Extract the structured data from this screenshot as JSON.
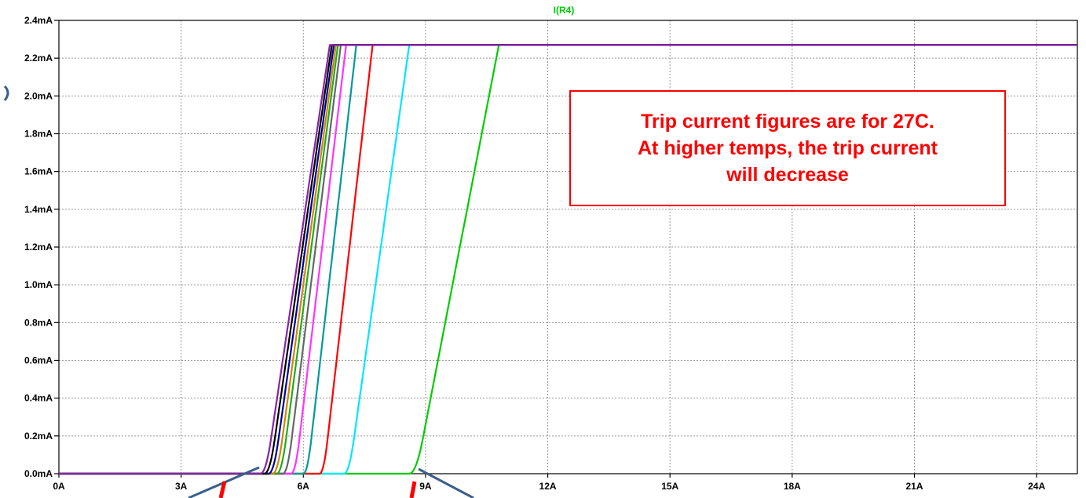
{
  "chart_data": {
    "type": "line",
    "title": "I(R4)",
    "xlabel": "",
    "ylabel": "",
    "xlim": [
      0,
      25
    ],
    "ylim": [
      0,
      2.4
    ],
    "x_ticks": [
      "0A",
      "3A",
      "6A",
      "9A",
      "12A",
      "15A",
      "18A",
      "21A",
      "24A"
    ],
    "x_tick_values": [
      0,
      3,
      6,
      9,
      12,
      15,
      18,
      21,
      24
    ],
    "y_ticks": [
      "0.0mA",
      "0.2mA",
      "0.4mA",
      "0.6mA",
      "0.8mA",
      "1.0mA",
      "1.2mA",
      "1.4mA",
      "1.6mA",
      "1.8mA",
      "2.0mA",
      "2.2mA",
      "2.4mA"
    ],
    "y_tick_values": [
      0,
      0.2,
      0.4,
      0.6,
      0.8,
      1.0,
      1.2,
      1.4,
      1.6,
      1.8,
      2.0,
      2.2,
      2.4
    ],
    "grid": true,
    "saturation_mA": 2.27,
    "series": [
      {
        "color": "#00cc00",
        "x_on": 8.6,
        "x_full": 10.8
      },
      {
        "color": "#00e5ff",
        "x_on": 7.0,
        "x_full": 8.6
      },
      {
        "color": "#ff0000",
        "x_on": 6.4,
        "x_full": 7.7
      },
      {
        "color": "#009999",
        "x_on": 6.0,
        "x_full": 7.3
      },
      {
        "color": "#ff33ff",
        "x_on": 5.7,
        "x_full": 7.05
      },
      {
        "color": "#666666",
        "x_on": 5.5,
        "x_full": 6.92
      },
      {
        "color": "#22aa22",
        "x_on": 5.35,
        "x_full": 6.85
      },
      {
        "color": "#cc8800",
        "x_on": 5.25,
        "x_full": 6.8
      },
      {
        "color": "#000099",
        "x_on": 5.15,
        "x_full": 6.75
      },
      {
        "color": "#000000",
        "x_on": 5.05,
        "x_full": 6.7
      },
      {
        "color": "#8822aa",
        "x_on": 4.95,
        "x_full": 6.65
      }
    ],
    "annotation": {
      "lines": [
        "Trip current figures are for 27C.",
        "At higher temps, the trip current",
        "will decrease"
      ],
      "color": "#ff0000"
    }
  },
  "colors": {
    "title": "#00cc00",
    "annotation_border": "#ff0000",
    "annotation_text": "#ff0000",
    "grid": "#999999",
    "marker_red": "#ff0000",
    "marker_blue": "#3a5f8a"
  }
}
